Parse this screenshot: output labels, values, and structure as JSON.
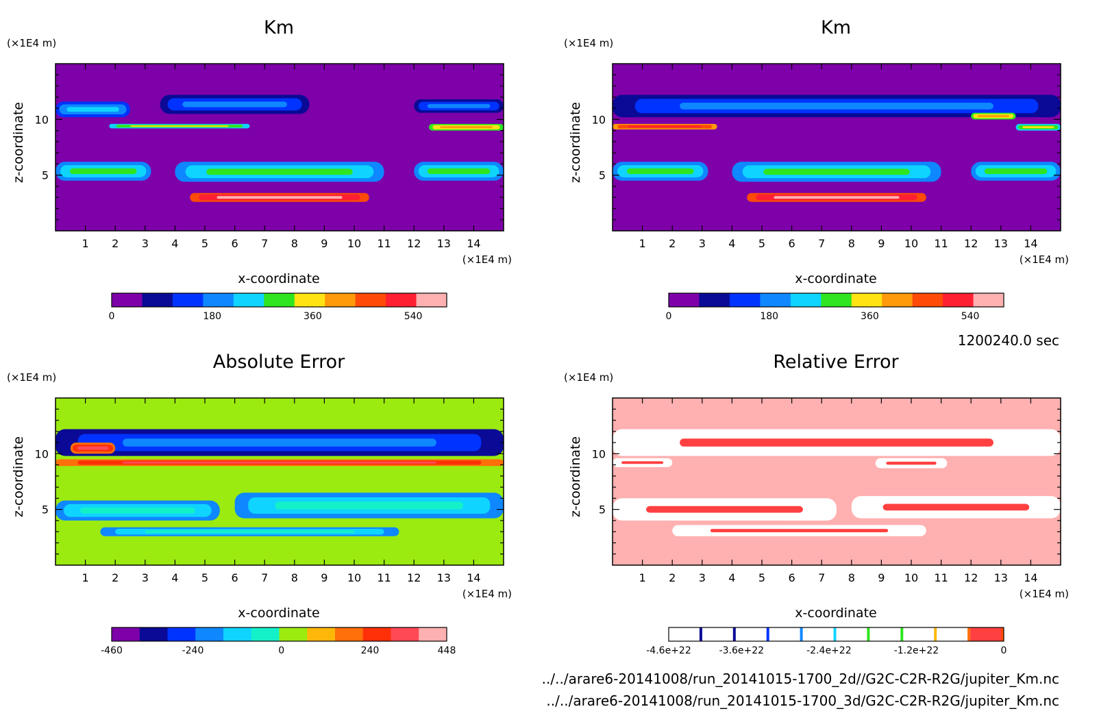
{
  "time_label": "1200240.0 sec",
  "footer": {
    "line1": "../../arare6-20141008/run_20141015-1700_2d//G2C-C2R-R2G/jupiter_Km.nc",
    "line2": "../../arare6-20141008/run_20141015-1700_3d/G2C-C2R-R2G/jupiter_Km.nc"
  },
  "axis_text": {
    "unit": "(×1E4 m)",
    "xlabel": "x-coordinate",
    "ylabel": "z-coordinate"
  },
  "chart_data": [
    {
      "type": "heatmap",
      "title": "Km",
      "xlabel": "x-coordinate",
      "ylabel": "z-coordinate",
      "x_unit": "(×1E4 m)",
      "y_unit": "(×1E4 m)",
      "xlim": [
        0,
        15
      ],
      "ylim": [
        0,
        15
      ],
      "x_ticks": [
        "1",
        "2",
        "3",
        "4",
        "5",
        "6",
        "7",
        "8",
        "9",
        "10",
        "11",
        "12",
        "13",
        "14"
      ],
      "y_ticks": [
        "5",
        "10"
      ],
      "background_color": "#7d00a8",
      "colorbar": {
        "colors": [
          "#7d00a8",
          "#0a0a96",
          "#0033ff",
          "#0f87ff",
          "#0fd4ff",
          "#2fe51f",
          "#ffe312",
          "#ff9a0a",
          "#ff4a08",
          "#ff1f33",
          "#ffb0b0"
        ],
        "tick_labels": [
          "0",
          "180",
          "360",
          "540"
        ],
        "tick_positions": [
          0,
          180,
          360,
          540
        ],
        "range": [
          0,
          600
        ]
      },
      "features": [
        {
          "x": [
            0.0,
            3.2
          ],
          "z": [
            4.5,
            6.2
          ],
          "level": 5
        },
        {
          "x": [
            4.0,
            11.0
          ],
          "z": [
            4.4,
            6.2
          ],
          "level": 5
        },
        {
          "x": [
            12.0,
            15.0
          ],
          "z": [
            4.5,
            6.2
          ],
          "level": 5
        },
        {
          "x": [
            4.5,
            10.5
          ],
          "z": [
            2.6,
            3.4
          ],
          "level": 10
        },
        {
          "x": [
            0.0,
            2.5
          ],
          "z": [
            10.2,
            11.6
          ],
          "level": 4
        },
        {
          "x": [
            3.5,
            8.5
          ],
          "z": [
            10.5,
            12.2
          ],
          "level": 3
        },
        {
          "x": [
            12.0,
            15.0
          ],
          "z": [
            10.6,
            11.8
          ],
          "level": 3
        },
        {
          "x": [
            1.8,
            6.5
          ],
          "z": [
            9.2,
            9.6
          ],
          "level": 6
        },
        {
          "x": [
            12.5,
            15.0
          ],
          "z": [
            9.0,
            9.6
          ],
          "level": 7
        }
      ]
    },
    {
      "type": "heatmap",
      "title": "Km",
      "xlabel": "x-coordinate",
      "ylabel": "z-coordinate",
      "x_unit": "(×1E4 m)",
      "y_unit": "(×1E4 m)",
      "xlim": [
        0,
        15
      ],
      "ylim": [
        0,
        15
      ],
      "x_ticks": [
        "1",
        "2",
        "3",
        "4",
        "5",
        "6",
        "7",
        "8",
        "9",
        "10",
        "11",
        "12",
        "13",
        "14"
      ],
      "y_ticks": [
        "5",
        "10"
      ],
      "background_color": "#7d00a8",
      "colorbar": {
        "colors": [
          "#7d00a8",
          "#0a0a96",
          "#0033ff",
          "#0f87ff",
          "#0fd4ff",
          "#2fe51f",
          "#ffe312",
          "#ff9a0a",
          "#ff4a08",
          "#ff1f33",
          "#ffb0b0"
        ],
        "tick_labels": [
          "0",
          "180",
          "360",
          "540"
        ],
        "tick_positions": [
          0,
          180,
          360,
          540
        ],
        "range": [
          0,
          600
        ]
      },
      "features": [
        {
          "x": [
            0.0,
            3.2
          ],
          "z": [
            4.5,
            6.2
          ],
          "level": 5
        },
        {
          "x": [
            4.0,
            11.0
          ],
          "z": [
            4.4,
            6.2
          ],
          "level": 5
        },
        {
          "x": [
            12.0,
            15.0
          ],
          "z": [
            4.5,
            6.2
          ],
          "level": 5
        },
        {
          "x": [
            4.5,
            10.5
          ],
          "z": [
            2.6,
            3.4
          ],
          "level": 10
        },
        {
          "x": [
            0.0,
            15.0
          ],
          "z": [
            10.2,
            12.2
          ],
          "level": 3
        },
        {
          "x": [
            0.0,
            3.5
          ],
          "z": [
            9.1,
            9.6
          ],
          "level": 9
        },
        {
          "x": [
            12.0,
            13.5
          ],
          "z": [
            10.0,
            10.6
          ],
          "level": 7
        },
        {
          "x": [
            13.5,
            15.0
          ],
          "z": [
            9.0,
            9.6
          ],
          "level": 6
        }
      ]
    },
    {
      "type": "heatmap",
      "title": "Absolute Error",
      "xlabel": "x-coordinate",
      "ylabel": "z-coordinate",
      "x_unit": "(×1E4 m)",
      "y_unit": "(×1E4 m)",
      "xlim": [
        0,
        15
      ],
      "ylim": [
        0,
        15
      ],
      "x_ticks": [
        "1",
        "2",
        "3",
        "4",
        "5",
        "6",
        "7",
        "8",
        "9",
        "10",
        "11",
        "12",
        "13",
        "14"
      ],
      "y_ticks": [
        "5",
        "10"
      ],
      "background_color": "#9bea10",
      "colorbar": {
        "colors": [
          "#7d00a8",
          "#0a0a96",
          "#0033ff",
          "#0f87ff",
          "#0fd4ff",
          "#14f0c8",
          "#9bea10",
          "#ffb80a",
          "#ff6f0a",
          "#ff3008",
          "#ff4a55",
          "#ffb0b0"
        ],
        "tick_labels": [
          "-460",
          "-240",
          "0",
          "240",
          "448"
        ],
        "tick_positions": [
          -460,
          -240,
          0,
          240,
          448
        ],
        "range": [
          -460,
          448
        ]
      },
      "features": [
        {
          "x": [
            0.0,
            15.0
          ],
          "z": [
            9.8,
            12.2
          ],
          "level": 3
        },
        {
          "x": [
            0.5,
            2.0
          ],
          "z": [
            10.0,
            11.0
          ],
          "level": 10
        },
        {
          "x": [
            0.0,
            15.0
          ],
          "z": [
            8.9,
            9.5
          ],
          "level": 10
        },
        {
          "x": [
            0.0,
            5.5
          ],
          "z": [
            4.0,
            5.8
          ],
          "level": 5
        },
        {
          "x": [
            6.0,
            15.0
          ],
          "z": [
            4.2,
            6.5
          ],
          "level": 5
        },
        {
          "x": [
            1.5,
            11.5
          ],
          "z": [
            2.6,
            3.4
          ],
          "level": 5
        }
      ]
    },
    {
      "type": "heatmap",
      "title": "Relative Error",
      "xlabel": "x-coordinate",
      "ylabel": "z-coordinate",
      "x_unit": "(×1E4 m)",
      "y_unit": "(×1E4 m)",
      "xlim": [
        0,
        15
      ],
      "ylim": [
        0,
        15
      ],
      "x_ticks": [
        "1",
        "2",
        "3",
        "4",
        "5",
        "6",
        "7",
        "8",
        "9",
        "10",
        "11",
        "12",
        "13",
        "14"
      ],
      "y_ticks": [
        "5",
        "10"
      ],
      "background_color": "#ffb0b0",
      "colorbar": {
        "colors": [
          "#ffffff",
          "#ffffff",
          "#ffffff",
          "#ffffff",
          "#ffffff",
          "#ffffff",
          "#ffffff",
          "#ffffff",
          "#ffffff",
          "#ff4040"
        ],
        "line_colors": [
          "#0a0a96",
          "#0a0a96",
          "#0033ff",
          "#0f87ff",
          "#0fd4ff",
          "#2fe51f",
          "#2fe51f",
          "#ffb80a",
          "#ff6f0a",
          "#ff4a08"
        ],
        "tick_labels": [
          "-4.6e+22",
          "-3.6e+22",
          "-2.4e+22",
          "-1.2e+22",
          "0"
        ],
        "tick_positions": [
          -4.6e+22,
          -3.6e+22,
          -2.4e+22,
          -1.2e+22,
          0
        ],
        "range": [
          -4.6e+22,
          0
        ]
      },
      "features": [
        {
          "x": [
            0.0,
            15.0
          ],
          "z": [
            9.8,
            12.2
          ],
          "level": 9
        },
        {
          "x": [
            0.0,
            2.0
          ],
          "z": [
            8.8,
            9.6
          ],
          "level": 9
        },
        {
          "x": [
            8.8,
            11.2
          ],
          "z": [
            8.7,
            9.6
          ],
          "level": 9
        },
        {
          "x": [
            0.0,
            7.5
          ],
          "z": [
            4.0,
            6.0
          ],
          "level": 9
        },
        {
          "x": [
            8.0,
            15.0
          ],
          "z": [
            4.2,
            6.2
          ],
          "level": 9
        },
        {
          "x": [
            2.0,
            10.5
          ],
          "z": [
            2.6,
            3.6
          ],
          "level": 9
        }
      ]
    }
  ]
}
